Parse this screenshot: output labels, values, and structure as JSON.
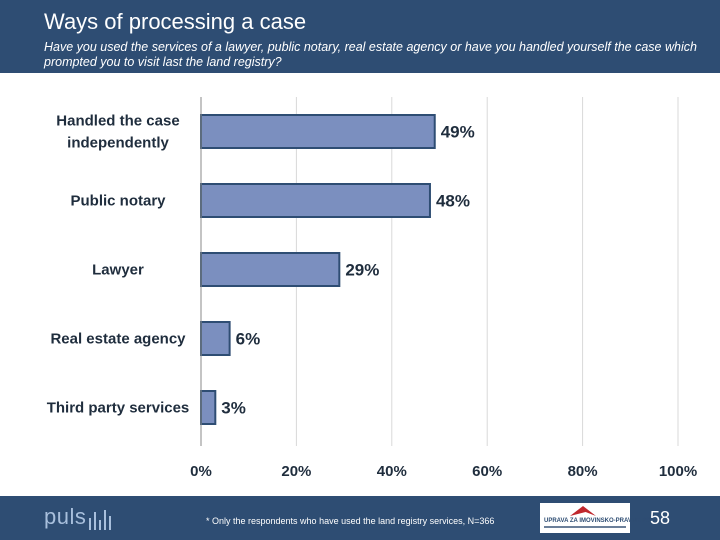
{
  "header": {
    "title": "Ways of processing a case",
    "subtitle": "Have you used the services of a lawyer, public notary, real estate agency or have you handled yourself the case which prompted you to visit last the land registry?"
  },
  "chart_data": {
    "type": "bar",
    "orientation": "horizontal",
    "categories": [
      [
        "Handled the case",
        "independently"
      ],
      [
        "Public notary"
      ],
      [
        "Lawyer"
      ],
      [
        "Real estate agency"
      ],
      [
        "Third party services"
      ]
    ],
    "values": [
      49,
      48,
      29,
      6,
      3
    ],
    "value_labels": [
      "49%",
      "48%",
      "29%",
      "6%",
      "3%"
    ],
    "xlim": [
      0,
      100
    ],
    "x_ticks": [
      0,
      20,
      40,
      60,
      80,
      100
    ],
    "x_tick_labels": [
      "0%",
      "20%",
      "40%",
      "60%",
      "80%",
      "100%"
    ],
    "grid": "vertical",
    "bar_color": "#7b8fbf",
    "bar_edge_color": "#2e4d73"
  },
  "footer": {
    "logo_text": "puls",
    "footnote": "* Only the respondents who have used the land registry services, N=366",
    "partner_logo_text": "UPRAVA ZA IMOVINSKO-PRAVNE POSLOVE",
    "page_number": "58"
  },
  "colors": {
    "header_bg": "#2e4d73",
    "grid": "#d9d9d9",
    "text": "#1f2d3d"
  }
}
